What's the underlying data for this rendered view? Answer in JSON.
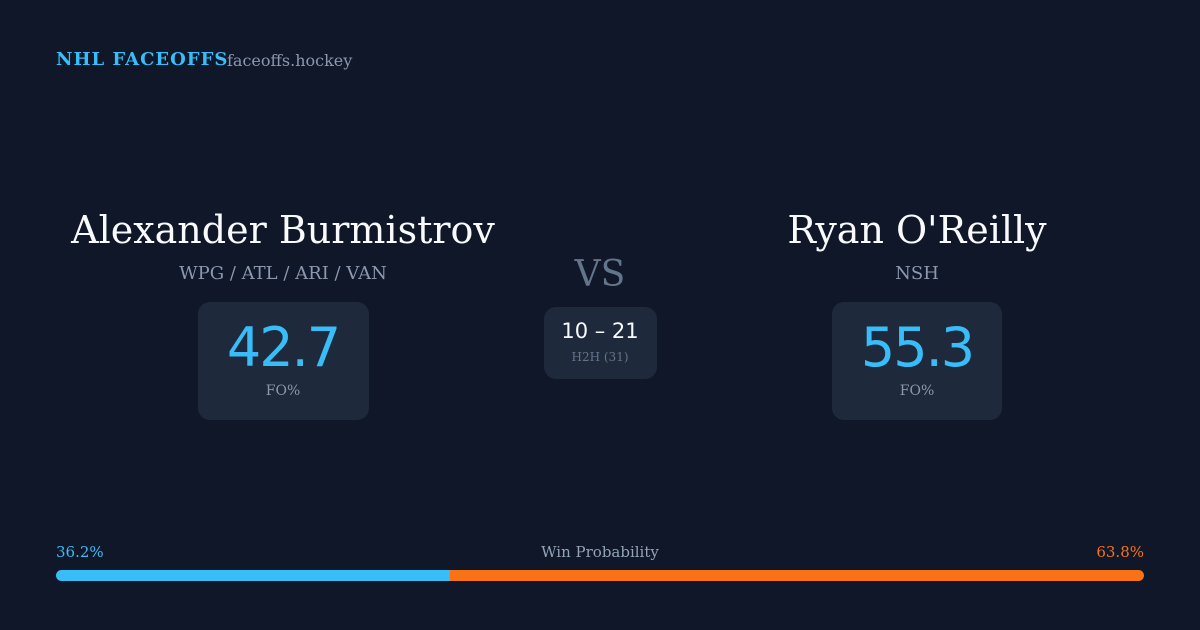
{
  "header": {
    "title": "NHL FACEOFFS",
    "site": "faceoffs.hockey"
  },
  "players": [
    {
      "name": "Alexander Burmistrov",
      "teams": "WPG / ATL / ARI / VAN",
      "fo_pct": 42.7,
      "fo_label": "FO%"
    },
    {
      "name": "Ryan O'Reilly",
      "teams": "NSH",
      "fo_pct": 55.3,
      "fo_label": "FO%"
    }
  ],
  "vs": "VS",
  "h2h": {
    "score": "10 – 21",
    "label": "H2H (31)"
  },
  "win_probability": {
    "label": "Win Probability",
    "values": [
      36.2,
      63.8
    ],
    "value_labels": [
      "36.2%",
      "63.8%"
    ],
    "colors": [
      "#38bdf8",
      "#f97316"
    ]
  }
}
